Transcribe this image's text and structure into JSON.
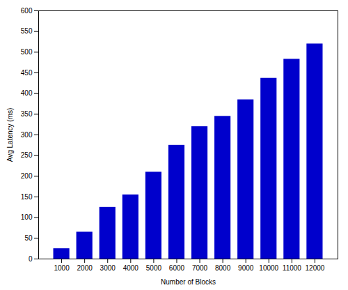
{
  "chart_data": {
    "type": "bar",
    "x": [
      1000,
      2000,
      3000,
      4000,
      5000,
      6000,
      7000,
      8000,
      9000,
      10000,
      11000,
      12000
    ],
    "values": [
      25,
      65,
      125,
      155,
      210,
      275,
      320,
      345,
      385,
      437,
      483,
      520
    ],
    "color": "#0000CC",
    "xlabel": "Number of Blocks",
    "ylabel": "Avg Latency (ms)",
    "xlim": [
      0,
      13000
    ],
    "xticks": [
      1000,
      2000,
      3000,
      4000,
      5000,
      6000,
      7000,
      8000,
      9000,
      10000,
      11000,
      12000
    ],
    "ylim": [
      0,
      600
    ],
    "yticks": [
      0,
      50,
      100,
      150,
      200,
      250,
      300,
      350,
      400,
      450,
      500,
      550,
      600
    ],
    "grid": false
  }
}
